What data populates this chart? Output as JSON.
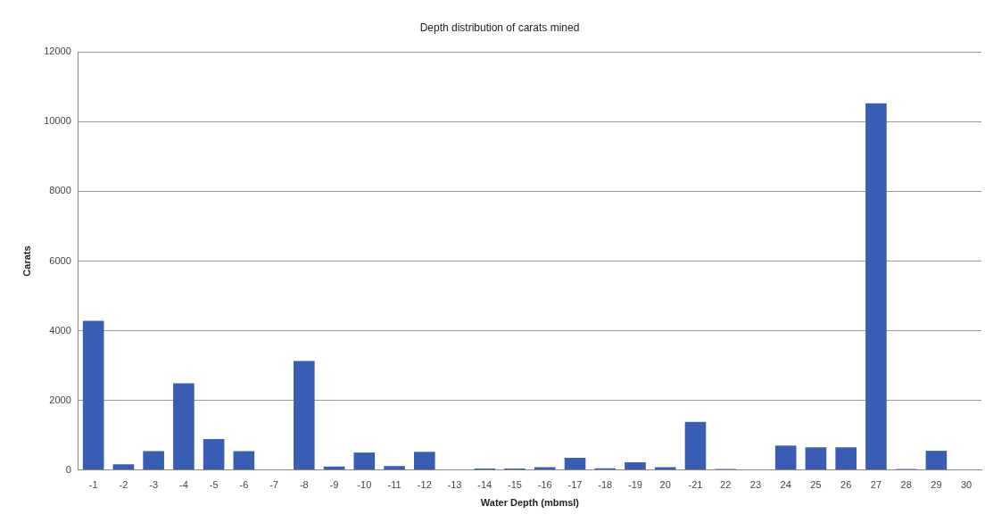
{
  "chart_data": {
    "type": "bar",
    "title": "Depth distribution of carats mined",
    "xlabel": "Water Depth (mbmsl)",
    "ylabel": "Carats",
    "categories": [
      "-1",
      "-2",
      "-3",
      "-4",
      "-5",
      "-6",
      "-7",
      "-8",
      "-9",
      "-10",
      "-11",
      "-12",
      "-13",
      "-14",
      "-15",
      "-16",
      "-17",
      "-18",
      "-19",
      "20",
      "-21",
      "22",
      "23",
      "24",
      "25",
      "26",
      "27",
      "28",
      "29",
      "30"
    ],
    "values": [
      4280,
      160,
      540,
      2490,
      890,
      540,
      0,
      3130,
      100,
      500,
      110,
      520,
      0,
      40,
      40,
      80,
      350,
      50,
      220,
      80,
      1380,
      30,
      0,
      700,
      650,
      650,
      10530,
      30,
      550,
      0
    ],
    "color": "#3a5db4",
    "ylim": [
      0,
      12000
    ],
    "yticks": [
      0,
      2000,
      4000,
      6000,
      8000,
      10000,
      12000
    ],
    "grid": "y",
    "legend": false
  }
}
